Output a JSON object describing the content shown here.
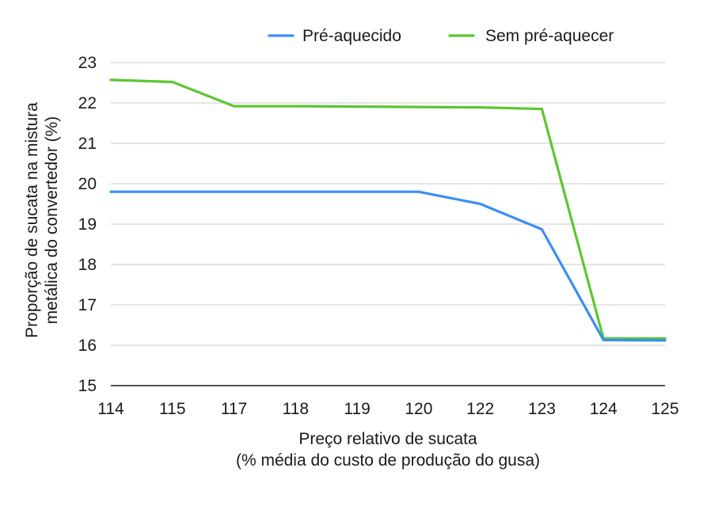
{
  "chart_data": {
    "type": "line",
    "categories": [
      "114",
      "115",
      "117",
      "118",
      "119",
      "120",
      "122",
      "123",
      "124",
      "125"
    ],
    "series": [
      {
        "name": "Pré-aquecido",
        "color": "#3a8ef6",
        "values": [
          19.8,
          19.8,
          19.8,
          19.8,
          19.8,
          19.8,
          19.5,
          18.87,
          16.13,
          16.12
        ]
      },
      {
        "name": "Sem pré-aquecer",
        "color": "#5cc633",
        "values": [
          22.57,
          22.52,
          21.92,
          21.92,
          21.91,
          21.9,
          21.89,
          21.85,
          16.17,
          16.17
        ]
      }
    ],
    "xlabel": [
      "Preço relativo de sucata",
      "(% média do custo de produção do gusa)"
    ],
    "ylabel": [
      "Proporção de sucata na mistura",
      "metálica do convertedor  (%)"
    ],
    "ylim": [
      15,
      23
    ],
    "yticks": [
      "15",
      "16",
      "17",
      "18",
      "19",
      "20",
      "21",
      "22",
      "23"
    ],
    "grid": "horizontal",
    "legend": "top"
  }
}
